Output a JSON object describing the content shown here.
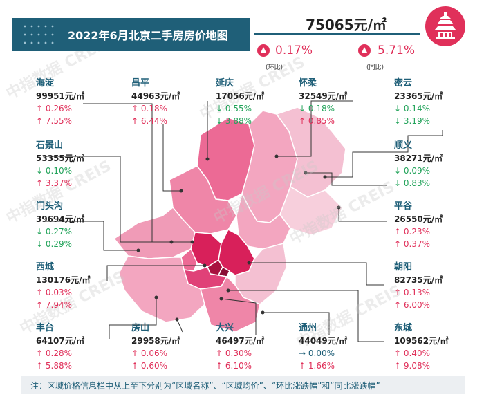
{
  "title": "2022年6月北京二手房房价地图",
  "summary": {
    "price": "75065元/㎡",
    "mom_pct": "0.17%",
    "mom_label": "(环比)",
    "yoy_pct": "5.71%",
    "yoy_label": "(同比)"
  },
  "watermark": "中指数据 CREIS",
  "districts": [
    {
      "name": "海淀",
      "price": "99951元/㎡",
      "mom": "0.26%",
      "mom_dir": "up",
      "yoy": "7.55%",
      "yoy_dir": "up"
    },
    {
      "name": "昌平",
      "price": "44963元/㎡",
      "mom": "0.18%",
      "mom_dir": "up",
      "yoy": "6.44%",
      "yoy_dir": "up"
    },
    {
      "name": "延庆",
      "price": "17056元/㎡",
      "mom": "0.55%",
      "mom_dir": "down",
      "yoy": "3.88%",
      "yoy_dir": "down"
    },
    {
      "name": "怀柔",
      "price": "32549元/㎡",
      "mom": "0.18%",
      "mom_dir": "down",
      "yoy": "0.85%",
      "yoy_dir": "up"
    },
    {
      "name": "密云",
      "price": "23365元/㎡",
      "mom": "0.14%",
      "mom_dir": "down",
      "yoy": "3.19%",
      "yoy_dir": "down"
    },
    {
      "name": "石景山",
      "price": "53355元/㎡",
      "mom": "0.10%",
      "mom_dir": "down",
      "yoy": "3.37%",
      "yoy_dir": "up"
    },
    {
      "name": "顺义",
      "price": "38271元/㎡",
      "mom": "0.09%",
      "mom_dir": "down",
      "yoy": "0.83%",
      "yoy_dir": "down"
    },
    {
      "name": "门头沟",
      "price": "39694元/㎡",
      "mom": "0.27%",
      "mom_dir": "down",
      "yoy": "0.29%",
      "yoy_dir": "down"
    },
    {
      "name": "平谷",
      "price": "26550元/㎡",
      "mom": "0.23%",
      "mom_dir": "up",
      "yoy": "0.37%",
      "yoy_dir": "up"
    },
    {
      "name": "西城",
      "price": "130176元/㎡",
      "mom": "0.03%",
      "mom_dir": "up",
      "yoy": "7.94%",
      "yoy_dir": "up"
    },
    {
      "name": "朝阳",
      "price": "82735元/㎡",
      "mom": "0.13%",
      "mom_dir": "up",
      "yoy": "6.00%",
      "yoy_dir": "up"
    },
    {
      "name": "丰台",
      "price": "64107元/㎡",
      "mom": "0.28%",
      "mom_dir": "up",
      "yoy": "5.88%",
      "yoy_dir": "up"
    },
    {
      "name": "房山",
      "price": "29958元/㎡",
      "mom": "0.06%",
      "mom_dir": "up",
      "yoy": "0.60%",
      "yoy_dir": "up"
    },
    {
      "name": "大兴",
      "price": "46497元/㎡",
      "mom": "0.30%",
      "mom_dir": "up",
      "yoy": "6.10%",
      "yoy_dir": "up"
    },
    {
      "name": "通州",
      "price": "44049元/㎡",
      "mom": "0.00%",
      "mom_dir": "flat",
      "yoy": "1.66%",
      "yoy_dir": "up"
    },
    {
      "name": "东城",
      "price": "109562元/㎡",
      "mom": "0.40%",
      "mom_dir": "up",
      "yoy": "9.08%",
      "yoy_dir": "up"
    }
  ],
  "arrows": {
    "up": "↑",
    "down": "↓",
    "flat": "→"
  },
  "footer": "注：区域价格信息栏中从上至下分别为“区域名称”、“区域均价”、“环比涨跌幅”和“同比涨跌幅”",
  "colors": {
    "brand": "#1f5f78",
    "up": "#e0305a",
    "down": "#22a35a"
  }
}
